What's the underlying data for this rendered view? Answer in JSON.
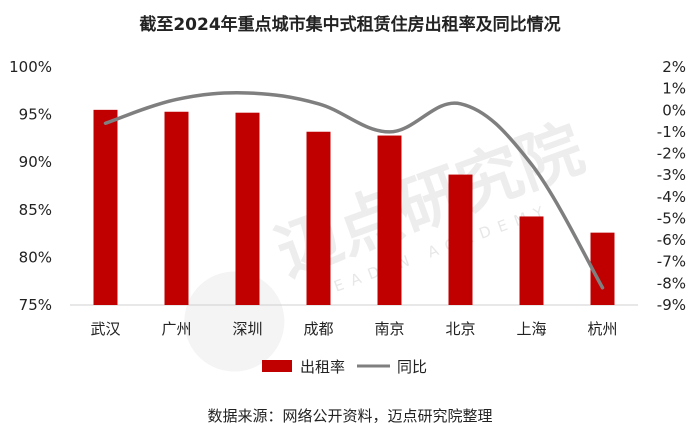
{
  "chart_data": {
    "type": "bar",
    "title": "截至2024年重点城市集中式租赁住房出租率及同比情况",
    "categories": [
      "武汉",
      "广州",
      "深圳",
      "成都",
      "南京",
      "北京",
      "上海",
      "杭州"
    ],
    "series": [
      {
        "name": "出租率",
        "type": "bar",
        "axis": "left",
        "color": "#C00000",
        "values": [
          95.5,
          95.3,
          95.2,
          93.2,
          92.8,
          88.7,
          84.3,
          82.6
        ]
      },
      {
        "name": "同比",
        "type": "line",
        "axis": "right",
        "color": "#7F7F7F",
        "values": [
          -0.6,
          0.5,
          0.8,
          0.3,
          -1.0,
          0.3,
          -2.5,
          -8.2
        ]
      }
    ],
    "y_left": {
      "min": 75,
      "max": 100,
      "step": 5,
      "tick_labels": [
        "100%",
        "95%",
        "90%",
        "85%",
        "80%",
        "75%"
      ]
    },
    "y_right": {
      "min": -9,
      "max": 2,
      "step": 1,
      "tick_labels": [
        "2%",
        "1%",
        "0%",
        "-1%",
        "-2%",
        "-3%",
        "-4%",
        "-5%",
        "-6%",
        "-7%",
        "-8%",
        "-9%"
      ]
    },
    "grid": false,
    "legend_position": "bottom"
  },
  "watermark": {
    "text": "迈点研究院",
    "sub": "MEADIN ACADEMY"
  },
  "source": "数据来源：网络公开资料，迈点研究院整理"
}
